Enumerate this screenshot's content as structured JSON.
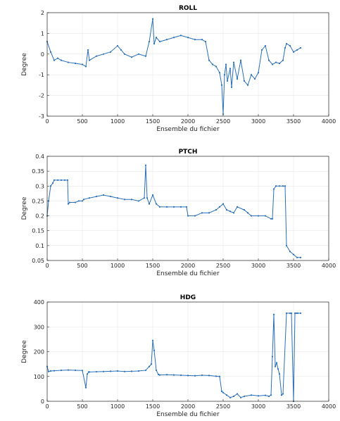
{
  "chart_data": [
    {
      "type": "line",
      "title": "ROLL",
      "xlabel": "Ensemble du fichier",
      "ylabel": "Degree",
      "xlim": [
        0,
        4000
      ],
      "ylim": [
        -3,
        2
      ],
      "xticks": [
        0,
        500,
        1000,
        1500,
        2000,
        2500,
        3000,
        3500,
        4000
      ],
      "yticks": [
        -3,
        -2,
        -1,
        0,
        1,
        2
      ],
      "xtick_labels": [
        "0",
        "500",
        "1000",
        "1500",
        "2000",
        "2500",
        "3000",
        "3500",
        "4000"
      ],
      "ytick_labels": [
        "-3",
        "-2",
        "-1",
        "0",
        "1",
        "2"
      ],
      "grid": true,
      "color": "#2a6fb8",
      "series": [
        {
          "x": [
            0,
            50,
            100,
            150,
            200,
            300,
            400,
            500,
            550,
            580,
            600,
            700,
            800,
            900,
            1000,
            1050,
            1100,
            1200,
            1300,
            1400,
            1450,
            1500,
            1520,
            1550,
            1600,
            1700,
            1800,
            1900,
            2000,
            2100,
            2200,
            2250,
            2300,
            2350,
            2400,
            2450,
            2480,
            2500,
            2520,
            2540,
            2560,
            2600,
            2620,
            2650,
            2700,
            2750,
            2800,
            2850,
            2900,
            2950,
            3000,
            3050,
            3100,
            3150,
            3200,
            3250,
            3300,
            3350,
            3380,
            3400,
            3450,
            3500,
            3550,
            3600
          ],
          "y": [
            0.6,
            0.1,
            -0.3,
            -0.2,
            -0.3,
            -0.4,
            -0.45,
            -0.5,
            -0.6,
            0.2,
            -0.3,
            -0.1,
            0.0,
            0.1,
            0.4,
            0.2,
            0.0,
            -0.15,
            0.0,
            -0.1,
            0.6,
            1.7,
            0.5,
            0.8,
            0.6,
            0.7,
            0.8,
            0.9,
            0.8,
            0.7,
            0.7,
            0.6,
            -0.3,
            -0.5,
            -0.6,
            -0.9,
            -1.5,
            -2.9,
            -1.0,
            -0.5,
            -1.3,
            -0.7,
            -1.6,
            -0.4,
            -1.2,
            -0.3,
            -1.3,
            -1.5,
            -1.0,
            -1.2,
            -0.9,
            0.2,
            0.4,
            -0.3,
            -0.5,
            -0.4,
            -0.45,
            -0.3,
            0.3,
            0.5,
            0.4,
            0.1,
            0.2,
            0.3
          ]
        }
      ]
    },
    {
      "type": "line",
      "title": "PTCH",
      "xlabel": "Ensemble du fichier",
      "ylabel": "Degree",
      "xlim": [
        0,
        4000
      ],
      "ylim": [
        0.05,
        0.4
      ],
      "xticks": [
        0,
        500,
        1000,
        1500,
        2000,
        2500,
        3000,
        3500,
        4000
      ],
      "yticks": [
        0.05,
        0.1,
        0.15,
        0.2,
        0.25,
        0.3,
        0.35,
        0.4
      ],
      "xtick_labels": [
        "0",
        "500",
        "1000",
        "1500",
        "2000",
        "2500",
        "3000",
        "3500",
        "4000"
      ],
      "ytick_labels": [
        "0.05",
        "0.1",
        "0.15",
        "0.2",
        "0.25",
        "0.3",
        "0.35",
        "0.4"
      ],
      "grid": true,
      "color": "#2a6fb8",
      "series": [
        {
          "x": [
            0,
            20,
            50,
            80,
            100,
            150,
            200,
            250,
            290,
            300,
            320,
            400,
            450,
            500,
            520,
            600,
            700,
            800,
            900,
            1000,
            1100,
            1200,
            1300,
            1380,
            1400,
            1420,
            1450,
            1500,
            1550,
            1600,
            1700,
            1800,
            1900,
            1980,
            2000,
            2100,
            2200,
            2300,
            2400,
            2450,
            2500,
            2550,
            2600,
            2650,
            2700,
            2800,
            2850,
            2900,
            3000,
            3100,
            3180,
            3200,
            3220,
            3250,
            3300,
            3350,
            3380,
            3400,
            3450,
            3500,
            3550,
            3600
          ],
          "y": [
            0.2,
            0.25,
            0.3,
            0.31,
            0.32,
            0.32,
            0.32,
            0.32,
            0.32,
            0.24,
            0.245,
            0.245,
            0.25,
            0.25,
            0.255,
            0.26,
            0.265,
            0.27,
            0.265,
            0.26,
            0.255,
            0.255,
            0.25,
            0.26,
            0.37,
            0.26,
            0.24,
            0.27,
            0.24,
            0.23,
            0.23,
            0.23,
            0.23,
            0.23,
            0.2,
            0.2,
            0.21,
            0.21,
            0.22,
            0.23,
            0.24,
            0.22,
            0.215,
            0.21,
            0.23,
            0.22,
            0.21,
            0.2,
            0.2,
            0.2,
            0.19,
            0.19,
            0.29,
            0.3,
            0.3,
            0.3,
            0.3,
            0.1,
            0.08,
            0.07,
            0.06,
            0.06
          ]
        }
      ]
    },
    {
      "type": "line",
      "title": "HDG",
      "xlabel": "Ensemble du fichier",
      "ylabel": "Degree",
      "xlim": [
        0,
        4000
      ],
      "ylim": [
        0,
        400
      ],
      "xticks": [
        0,
        500,
        1000,
        1500,
        2000,
        2500,
        3000,
        3500,
        4000
      ],
      "yticks": [
        0,
        100,
        200,
        300,
        400
      ],
      "xtick_labels": [
        "0",
        "500",
        "1000",
        "1500",
        "2000",
        "2500",
        "3000",
        "3500",
        "4000"
      ],
      "ytick_labels": [
        "0",
        "100",
        "200",
        "300",
        "400"
      ],
      "grid": true,
      "color": "#2a6fb8",
      "series": [
        {
          "x": [
            0,
            20,
            50,
            100,
            200,
            300,
            400,
            500,
            550,
            570,
            590,
            600,
            700,
            800,
            900,
            1000,
            1100,
            1200,
            1300,
            1400,
            1450,
            1480,
            1500,
            1520,
            1550,
            1580,
            1600,
            1700,
            1800,
            1900,
            2000,
            2100,
            2200,
            2300,
            2400,
            2450,
            2480,
            2500,
            2550,
            2600,
            2650,
            2700,
            2750,
            2800,
            2900,
            3000,
            3100,
            3150,
            3180,
            3200,
            3220,
            3240,
            3260,
            3280,
            3300,
            3330,
            3350,
            3400,
            3450,
            3470,
            3500,
            3520,
            3540,
            3560,
            3600
          ],
          "y": [
            140,
            120,
            122,
            123,
            125,
            126,
            125,
            124,
            55,
            110,
            118,
            118,
            119,
            120,
            121,
            122,
            120,
            121,
            122,
            125,
            140,
            150,
            245,
            205,
            125,
            108,
            106,
            107,
            106,
            105,
            104,
            103,
            105,
            104,
            101,
            100,
            40,
            35,
            25,
            15,
            20,
            30,
            15,
            20,
            25,
            22,
            24,
            20,
            25,
            180,
            350,
            140,
            155,
            130,
            110,
            25,
            30,
            355,
            355,
            355,
            0,
            355,
            355,
            355,
            355
          ]
        }
      ]
    }
  ]
}
